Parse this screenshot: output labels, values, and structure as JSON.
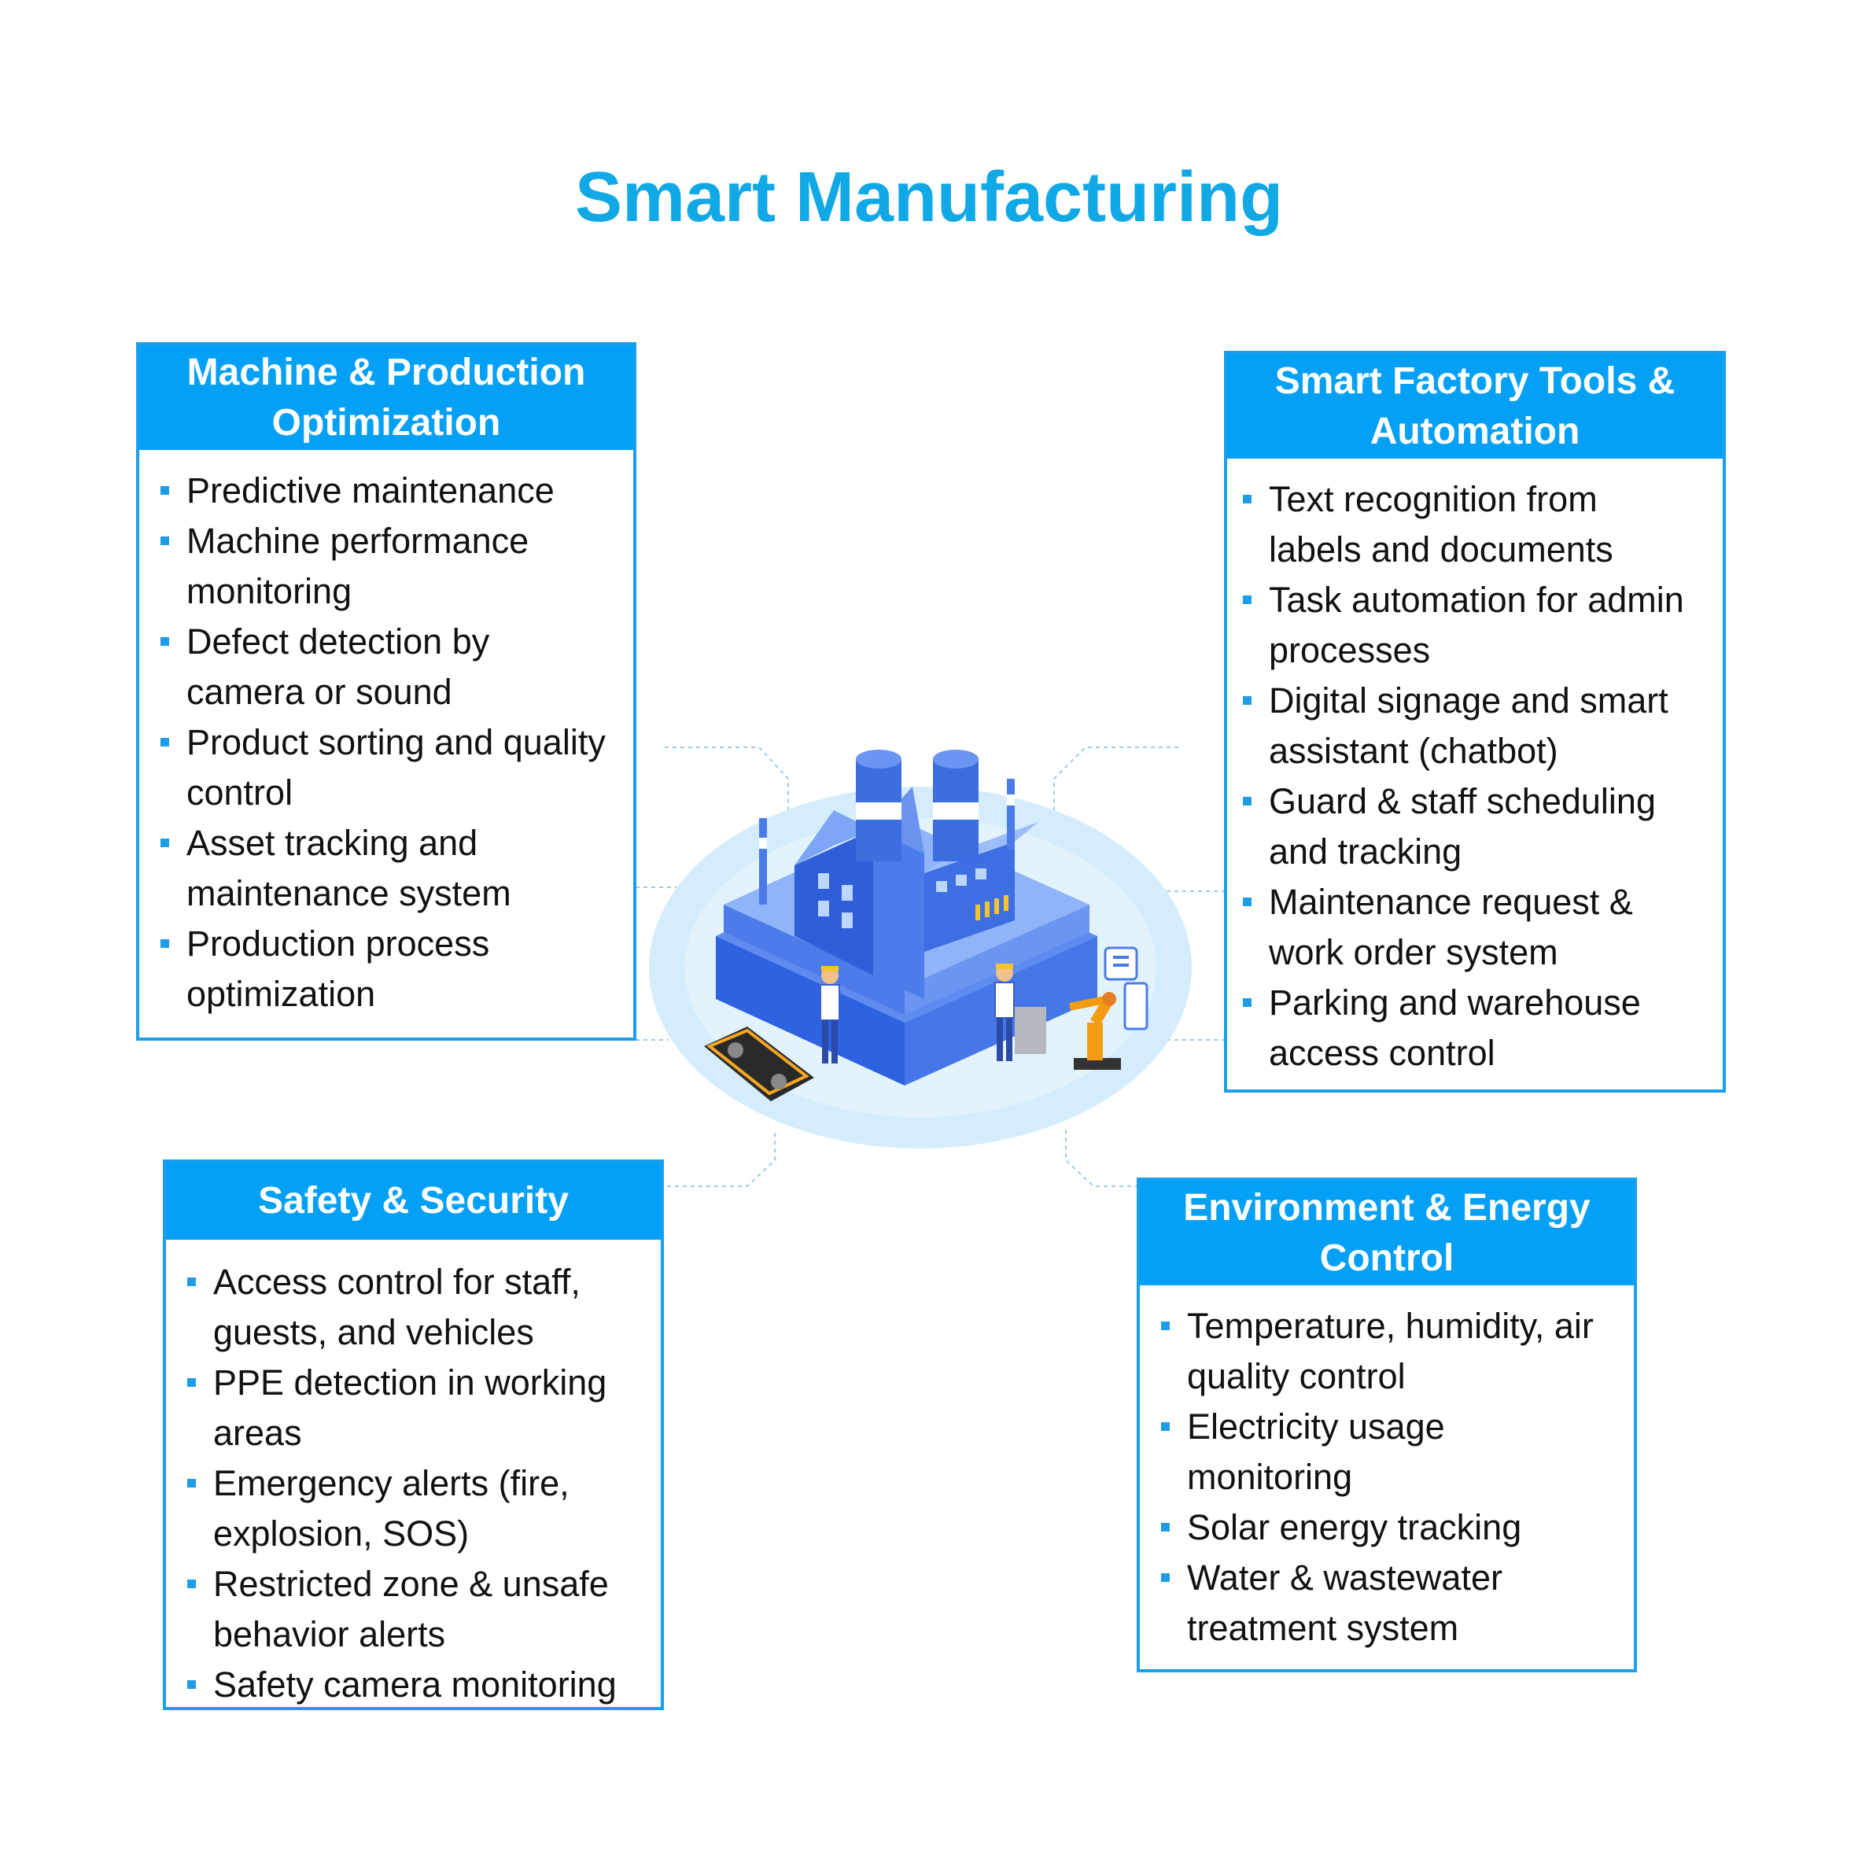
{
  "title": "Smart Manufacturing",
  "colors": {
    "accent": "#04a0f5",
    "title": "#11a8e6",
    "border": "#1a9ff0"
  },
  "cards": {
    "machine": {
      "header": "Machine & Production Optimization",
      "items": [
        "Predictive maintenance",
        "Machine performance monitoring",
        "Defect detection by camera or sound",
        "Product sorting and quality control",
        "Asset tracking and maintenance system",
        "Production process optimization"
      ]
    },
    "tools": {
      "header": "Smart Factory Tools & Automation",
      "items": [
        "Text recognition from labels and documents",
        "Task automation for admin processes",
        "Digital signage and smart assistant (chatbot)",
        "Guard & staff scheduling and tracking",
        "Maintenance request & work order system",
        "Parking and warehouse access control"
      ]
    },
    "safety": {
      "header": "Safety & Security",
      "items": [
        "Access control for staff, guests, and vehicles",
        "PPE detection in working areas",
        "Emergency alerts (fire, explosion, SOS)",
        "Restricted zone & unsafe behavior alerts",
        "Safety camera monitoring"
      ]
    },
    "environment": {
      "header": "Environment & Energy Control",
      "items": [
        "Temperature, humidity, air quality control",
        "Electricity usage monitoring",
        "Solar energy tracking",
        "Water & wastewater treatment system"
      ]
    }
  },
  "illustration": {
    "icon": "factory-illustration"
  }
}
